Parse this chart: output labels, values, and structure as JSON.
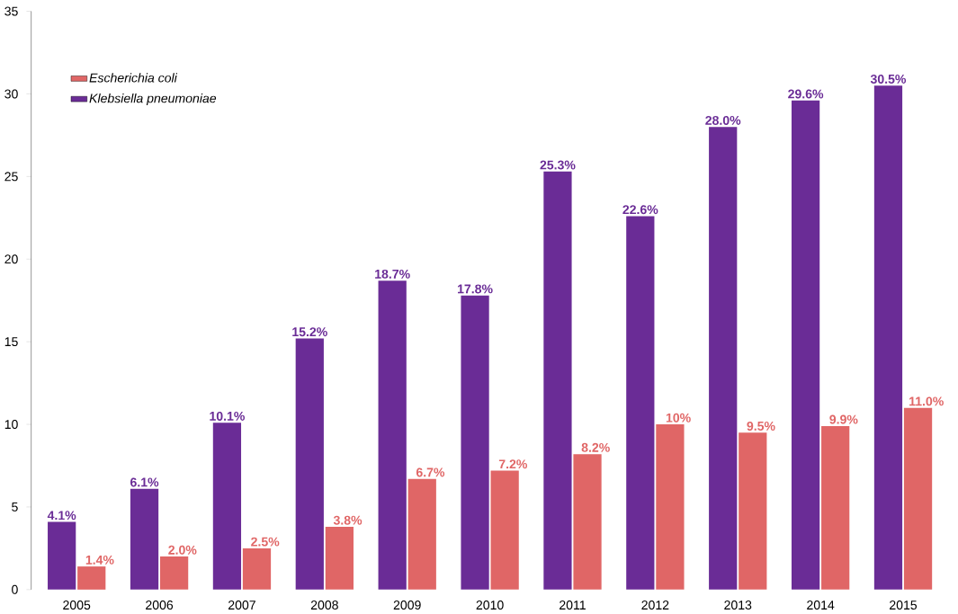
{
  "chart_data": {
    "type": "bar",
    "categories": [
      "2005",
      "2006",
      "2007",
      "2008",
      "2009",
      "2010",
      "2011",
      "2012",
      "2013",
      "2014",
      "2015"
    ],
    "series": [
      {
        "name": "Klebsiella pneumoniae",
        "color": "#6a2c96",
        "values": [
          4.1,
          6.1,
          10.1,
          15.2,
          18.7,
          17.8,
          25.3,
          22.6,
          28.0,
          29.6,
          30.5
        ],
        "value_labels": [
          "4.1%",
          "6.1%",
          "10.1%",
          "15.2%",
          "18.7%",
          "17.8%",
          "25.3%",
          "22.6%",
          "28.0%",
          "29.6%",
          "30.5%"
        ]
      },
      {
        "name": "Escherichia coli",
        "color": "#e06666",
        "values": [
          1.4,
          2.0,
          2.5,
          3.8,
          6.7,
          7.2,
          8.2,
          10,
          9.5,
          9.9,
          11.0
        ],
        "value_labels": [
          "1.4%",
          "2.0%",
          "2.5%",
          "3.8%",
          "6.7%",
          "7.2%",
          "8.2%",
          "10%",
          "9.5%",
          "9.9%",
          "11.0%"
        ]
      }
    ],
    "ylim": [
      0,
      35
    ],
    "yticks": [
      0,
      5,
      10,
      15,
      20,
      25,
      30,
      35
    ],
    "grid": false,
    "legend": "top left"
  }
}
